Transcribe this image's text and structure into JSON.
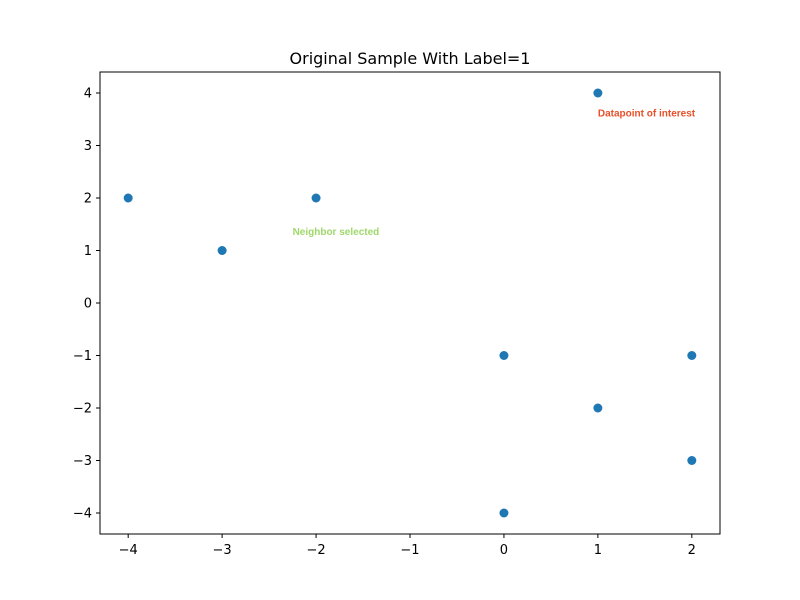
{
  "chart_data": {
    "type": "scatter",
    "title": "Original Sample With Label=1",
    "xlabel": "",
    "ylabel": "",
    "xlim": [
      -4.3,
      2.3
    ],
    "ylim": [
      -4.4,
      4.4
    ],
    "grid": false,
    "x_ticks": [
      -4,
      -3,
      -2,
      -1,
      0,
      1,
      2
    ],
    "x_tick_labels": [
      "−4",
      "−3",
      "−2",
      "−1",
      "0",
      "1",
      "2"
    ],
    "y_ticks": [
      4,
      3,
      2,
      1,
      0,
      -1,
      -2,
      -3,
      -4
    ],
    "y_tick_labels": [
      "4",
      "3",
      "2",
      "1",
      "0",
      "−1",
      "−2",
      "−3",
      "−4"
    ],
    "series": [
      {
        "color": "#1f77b4",
        "points": [
          {
            "x": -4,
            "y": 2
          },
          {
            "x": -3,
            "y": 1
          },
          {
            "x": -2,
            "y": 2
          },
          {
            "x": 0,
            "y": -1
          },
          {
            "x": 0,
            "y": -4
          },
          {
            "x": 1,
            "y": 4
          },
          {
            "x": 1,
            "y": -2
          },
          {
            "x": 2,
            "y": -1
          },
          {
            "x": 2,
            "y": -3
          }
        ]
      }
    ],
    "annotations": [
      {
        "text": "Datapoint of interest",
        "x": 1,
        "y": 3.55,
        "color": "#e8502a"
      },
      {
        "text": "Neighbor selected",
        "x": -2.25,
        "y": 1.3,
        "color": "#9fd86b"
      }
    ]
  }
}
